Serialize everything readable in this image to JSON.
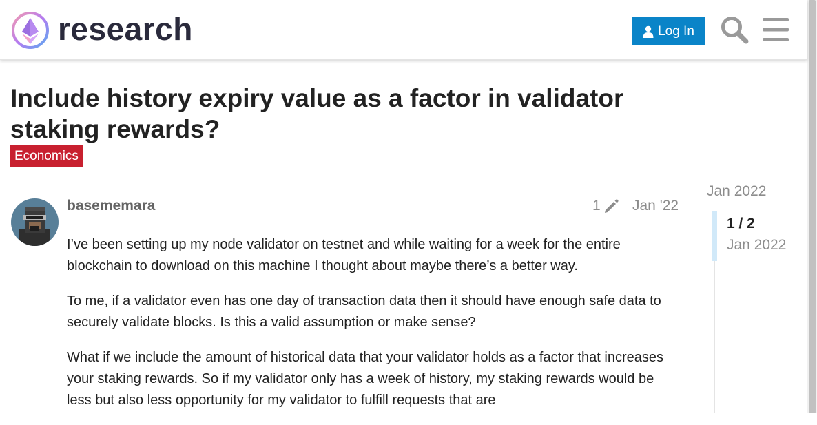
{
  "header": {
    "logo_text": "research",
    "login_label": "Log In",
    "icons": [
      "logo-icon",
      "user-icon",
      "search-icon",
      "menu-icon"
    ],
    "accent_color": "#0a84c8"
  },
  "topic": {
    "title": "Include history expiry value as a factor in validator staking rewards?",
    "category": "Economics",
    "category_color": "#c8202f"
  },
  "post": {
    "username": "basememara",
    "edit_count": "1",
    "date": "Jan '22",
    "paragraphs": [
      "I’ve been setting up my node validator on testnet and while waiting for a week for the entire blockchain to download on this machine I thought about maybe there’s a better way.",
      "To me, if a validator even has one day of transaction data then it should have enough safe data to securely validate blocks. Is this a valid assumption or make sense?",
      "What if we include the amount of historical data that your validator holds as a factor that increases your staking rewards. So if my validator only has a week of history, my staking rewards would be less but also less opportunity for my validator to fulfill requests that are"
    ]
  },
  "timeline": {
    "start_date": "Jan 2022",
    "position": "1 / 2",
    "current_date": "Jan 2022"
  }
}
